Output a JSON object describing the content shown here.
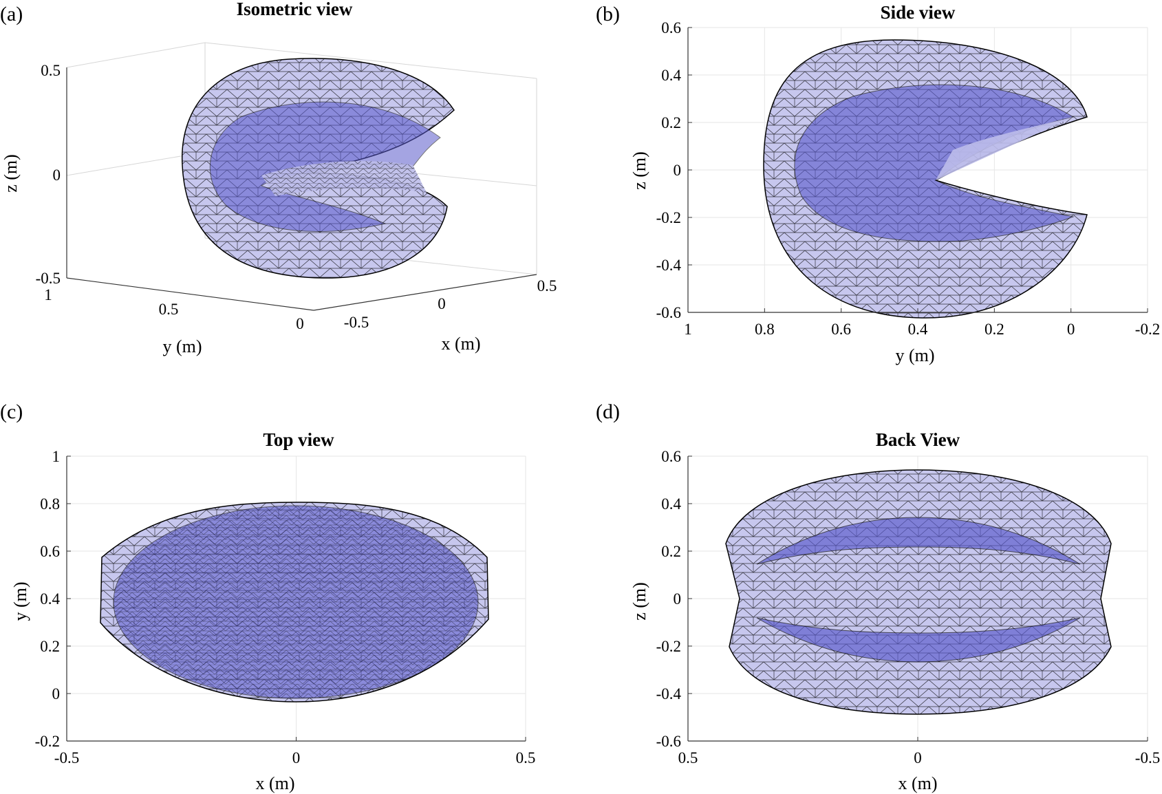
{
  "figure": {
    "panels": [
      {
        "label": "(a)",
        "title": "Isometric view"
      },
      {
        "label": "(b)",
        "title": "Side view"
      },
      {
        "label": "(c)",
        "title": "Top view"
      },
      {
        "label": "(d)",
        "title": "Back View"
      }
    ]
  },
  "colors": {
    "surface_fill": "#6f6fdc",
    "mesh": "#000000",
    "grid": "#e6e6e6"
  },
  "chart_data": [
    {
      "type": "3d-mesh",
      "panel": "(a)",
      "title": "Isometric view",
      "xlabel": "x (m)",
      "ylabel": "y (m)",
      "zlabel": "z (m)",
      "x_ticks": [
        "-0.5",
        "0",
        "0.5"
      ],
      "y_ticks": [
        "1",
        "0.5",
        "0"
      ],
      "z_ticks": [
        "0.5",
        "0",
        "-0.5"
      ],
      "xlim": [
        -0.5,
        0.5
      ],
      "ylim": [
        0,
        1
      ],
      "zlim": [
        -0.5,
        0.5
      ],
      "grid": true
    },
    {
      "type": "2d-mesh",
      "panel": "(b)",
      "title": "Side view",
      "xlabel": "y (m)",
      "ylabel": "z (m)",
      "x_ticks": [
        "1",
        "0.8",
        "0.6",
        "0.4",
        "0.2",
        "0",
        "-0.2"
      ],
      "y_ticks": [
        "0.6",
        "0.4",
        "0.2",
        "0",
        "-0.2",
        "-0.4",
        "-0.6"
      ],
      "xlim": [
        1,
        -0.2
      ],
      "ylim": [
        -0.6,
        0.6
      ],
      "grid": true
    },
    {
      "type": "2d-mesh",
      "panel": "(c)",
      "title": "Top view",
      "xlabel": "x (m)",
      "ylabel": "y (m)",
      "x_ticks": [
        "-0.5",
        "0",
        "0.5"
      ],
      "y_ticks": [
        "1",
        "0.8",
        "0.6",
        "0.4",
        "0.2",
        "0",
        "-0.2"
      ],
      "xlim": [
        -0.5,
        0.5
      ],
      "ylim": [
        -0.2,
        1
      ],
      "grid": true
    },
    {
      "type": "2d-mesh",
      "panel": "(d)",
      "title": "Back View",
      "xlabel": "x (m)",
      "ylabel": "z (m)",
      "x_ticks": [
        "0.5",
        "0",
        "-0.5"
      ],
      "y_ticks": [
        "0.6",
        "0.4",
        "0.2",
        "0",
        "-0.2",
        "-0.4",
        "-0.6"
      ],
      "xlim": [
        0.5,
        -0.5
      ],
      "ylim": [
        -0.6,
        0.6
      ],
      "grid": true
    }
  ]
}
